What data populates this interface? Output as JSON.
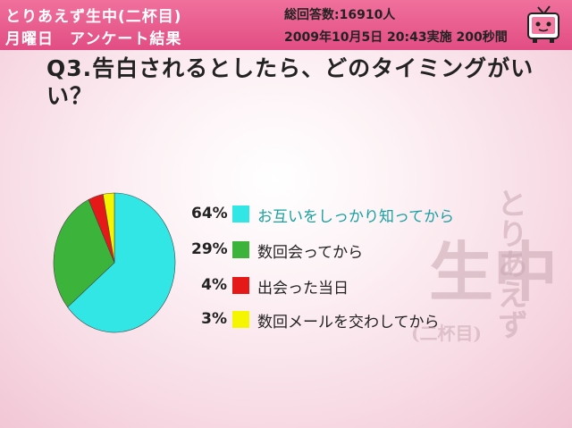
{
  "header": {
    "title_line1": "とりあえず生中(二杯目)",
    "title_line2": "月曜日　アンケート結果",
    "total_responses": "総回答数:16910人",
    "date_info": "2009年10月5日 20:43実施 200秒間"
  },
  "question": "Q3.告白されるとしたら、どのタイミングがいい？",
  "chart_data": {
    "type": "pie",
    "title": "Q3.告白されるとしたら、どのタイミングがいい？",
    "slices": [
      {
        "label": "お互いをしっかり知ってから",
        "value": 64,
        "display": "64%",
        "color": "#33e6e6"
      },
      {
        "label": "数回会ってから",
        "value": 29,
        "display": "29%",
        "color": "#3cb43c"
      },
      {
        "label": "出会った当日",
        "value": 4,
        "display": "4%",
        "color": "#e61919"
      },
      {
        "label": "数回メールを交わしてから",
        "value": 3,
        "display": "3%",
        "color": "#f5f500"
      }
    ],
    "legend_position": "right"
  },
  "watermark": {
    "line1": "とりあえず",
    "line2": "生中",
    "line3": "(二杯目)"
  }
}
